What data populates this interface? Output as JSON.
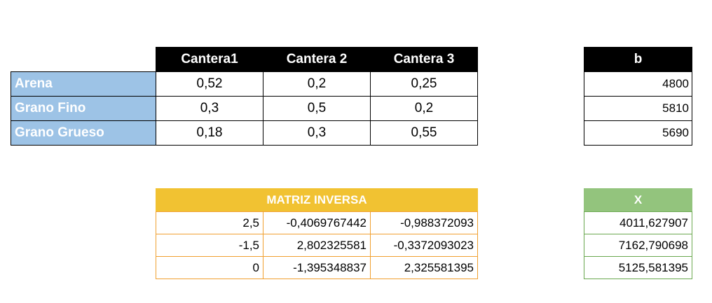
{
  "matrix_a": {
    "columns": [
      "Cantera1",
      "Cantera 2",
      "Cantera 3"
    ],
    "rows": [
      {
        "label": "Arena",
        "values": [
          "0,52",
          "0,2",
          "0,25"
        ]
      },
      {
        "label": "Grano Fino",
        "values": [
          "0,3",
          "0,5",
          "0,2"
        ]
      },
      {
        "label": "Grano Grueso",
        "values": [
          "0,18",
          "0,3",
          "0,55"
        ]
      }
    ]
  },
  "vector_b": {
    "header": "b",
    "values": [
      "4800",
      "5810",
      "5690"
    ]
  },
  "inverse": {
    "header": "MATRIZ INVERSA",
    "rows": [
      [
        "2,5",
        "-0,4069767442",
        "-0,988372093"
      ],
      [
        "-1,5",
        "2,802325581",
        "-0,3372093023"
      ],
      [
        "0",
        "-1,395348837",
        "2,325581395"
      ]
    ]
  },
  "vector_x": {
    "header": "X",
    "values": [
      "4011,627907",
      "7162,790698",
      "5125,581395"
    ]
  },
  "colors": {
    "row_label_bg": "#9dc3e6",
    "header_black": "#000000",
    "header_orange": "#f1c232",
    "border_orange": "#f0a030",
    "header_green": "#93c47d",
    "border_green": "#6aa84f"
  }
}
